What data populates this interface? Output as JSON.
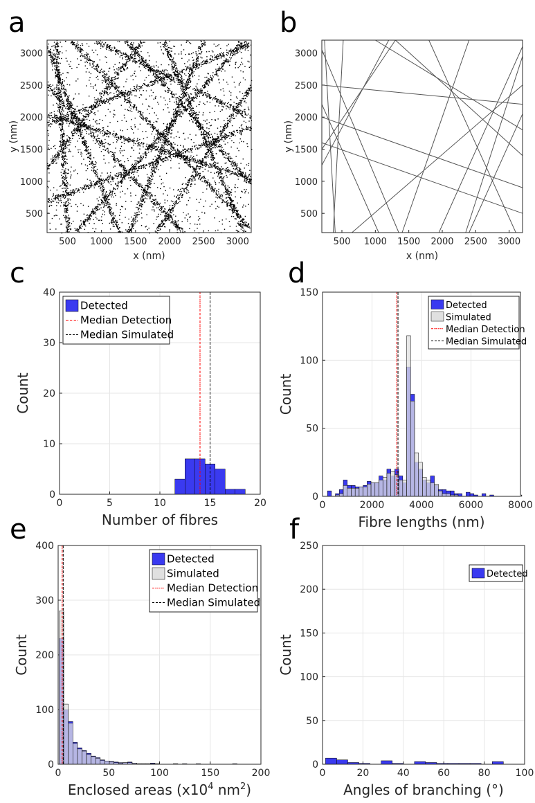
{
  "panels": {
    "a": {
      "letter": "a"
    },
    "b": {
      "letter": "b"
    },
    "c": {
      "letter": "c"
    },
    "d": {
      "letter": "d"
    },
    "e": {
      "letter": "e"
    },
    "f": {
      "letter": "f"
    }
  },
  "colors": {
    "detected": "#3a3af0",
    "simulated": "#e0e0e0",
    "median_detection": "#ff0000",
    "median_simulated": "#000000"
  },
  "chart_data": [
    {
      "id": "a",
      "type": "scatter",
      "xlabel": "x (nm)",
      "ylabel": "y (nm)",
      "xlim": [
        200,
        3200
      ],
      "ylim": [
        200,
        3200
      ],
      "xticks": [
        "500",
        "1000",
        "1500",
        "2000",
        "2500",
        "3000"
      ],
      "yticks": [
        "500",
        "1000",
        "1500",
        "2000",
        "2500",
        "3000"
      ],
      "fibres": [
        [
          [
            200,
            3100
          ],
          [
            1250,
            200
          ]
        ],
        [
          [
            330,
            3200
          ],
          [
            500,
            200
          ]
        ],
        [
          [
            200,
            2500
          ],
          [
            2200,
            200
          ]
        ],
        [
          [
            200,
            1900
          ],
          [
            3200,
            3150
          ]
        ],
        [
          [
            900,
            3200
          ],
          [
            3200,
            2000
          ]
        ],
        [
          [
            200,
            1200
          ],
          [
            1600,
            3200
          ]
        ],
        [
          [
            550,
            3200
          ],
          [
            3200,
            250
          ]
        ],
        [
          [
            1350,
            3200
          ],
          [
            3200,
            950
          ]
        ],
        [
          [
            200,
            2050
          ],
          [
            3200,
            1050
          ]
        ],
        [
          [
            600,
            200
          ],
          [
            3100,
            3200
          ]
        ],
        [
          [
            1800,
            200
          ],
          [
            3200,
            2500
          ]
        ],
        [
          [
            1900,
            3200
          ],
          [
            3100,
            200
          ]
        ],
        [
          [
            200,
            700
          ],
          [
            3200,
            1850
          ]
        ],
        [
          [
            1400,
            200
          ],
          [
            2500,
            3200
          ]
        ]
      ]
    },
    {
      "id": "b",
      "type": "line",
      "xlabel": "x (nm)",
      "ylabel": "y (nm)",
      "xlim": [
        200,
        3200
      ],
      "ylim": [
        200,
        3200
      ],
      "xticks": [
        "500",
        "1000",
        "1500",
        "2000",
        "2500",
        "3000"
      ],
      "yticks": [
        "500",
        "1000",
        "1500",
        "2000",
        "2500",
        "3000"
      ],
      "fibres": [
        [
          [
            240,
            3200
          ],
          [
            400,
            200
          ]
        ],
        [
          [
            520,
            3200
          ],
          [
            370,
            200
          ]
        ],
        [
          [
            200,
            3050
          ],
          [
            1350,
            200
          ]
        ],
        [
          [
            200,
            2200
          ],
          [
            1050,
            200
          ]
        ],
        [
          [
            200,
            1500
          ],
          [
            1300,
            3200
          ]
        ],
        [
          [
            200,
            1250
          ],
          [
            1200,
            3200
          ]
        ],
        [
          [
            200,
            2500
          ],
          [
            3200,
            2200
          ]
        ],
        [
          [
            200,
            2000
          ],
          [
            3200,
            900
          ]
        ],
        [
          [
            1000,
            3200
          ],
          [
            3200,
            1800
          ]
        ],
        [
          [
            1300,
            3200
          ],
          [
            3200,
            1400
          ]
        ],
        [
          [
            650,
            200
          ],
          [
            3200,
            2500
          ]
        ],
        [
          [
            1950,
            200
          ],
          [
            3200,
            3100
          ]
        ],
        [
          [
            2400,
            200
          ],
          [
            3200,
            2050
          ]
        ],
        [
          [
            1800,
            3200
          ],
          [
            3100,
            200
          ]
        ],
        [
          [
            3200,
            2950
          ],
          [
            2350,
            200
          ]
        ],
        [
          [
            200,
            1600
          ],
          [
            3200,
            500
          ]
        ],
        [
          [
            1400,
            200
          ],
          [
            2400,
            3200
          ]
        ]
      ]
    },
    {
      "id": "c",
      "type": "bar",
      "xlabel": "Number of fibres",
      "ylabel": "Count",
      "xlim": [
        0,
        20
      ],
      "ylim": [
        0,
        40
      ],
      "xticks": [
        "0",
        "5",
        "10",
        "15",
        "20"
      ],
      "yticks": [
        "0",
        "10",
        "20",
        "30",
        "40"
      ],
      "legend": {
        "position": "top-left",
        "entries": [
          "Detected",
          "Median Detection",
          "Median Simulated"
        ]
      },
      "series": [
        {
          "name": "Detected",
          "bin_width": 1,
          "bin_starts": [
            11.5,
            12.5,
            13.5,
            14.5,
            15.5,
            16.5,
            17.5
          ],
          "values": [
            3,
            7,
            7,
            6,
            5,
            1,
            1
          ]
        }
      ],
      "median_detection": 14,
      "median_simulated": 15
    },
    {
      "id": "d",
      "type": "bar",
      "xlabel": "Fibre lengths (nm)",
      "ylabel": "Count",
      "xlim": [
        0,
        8000
      ],
      "ylim": [
        0,
        150
      ],
      "xticks": [
        "0",
        "2000",
        "4000",
        "6000",
        "8000"
      ],
      "yticks": [
        "0",
        "50",
        "100",
        "150"
      ],
      "legend": {
        "position": "top-right",
        "entries": [
          "Detected",
          "Simulated",
          "Median Detection",
          "Median Simulated"
        ]
      },
      "bin_width": 160,
      "bin_start": 200,
      "series": [
        {
          "name": "Detected",
          "values": [
            4,
            0,
            2,
            5,
            12,
            8,
            8,
            7,
            7,
            8,
            11,
            10,
            10,
            15,
            12,
            20,
            15,
            20,
            15,
            10,
            95,
            75,
            25,
            20,
            12,
            10,
            15,
            8,
            5,
            5,
            4,
            4,
            2,
            2,
            0,
            3,
            2,
            1,
            0,
            2,
            0,
            1,
            0,
            0,
            0,
            0,
            0,
            0,
            0,
            1
          ]
        },
        {
          "name": "Simulated",
          "values": [
            0,
            0,
            1,
            2,
            8,
            6,
            6,
            6,
            7,
            7,
            9,
            10,
            10,
            12,
            14,
            17,
            18,
            16,
            12,
            12,
            118,
            70,
            32,
            25,
            14,
            12,
            10,
            9,
            4,
            2,
            2,
            1,
            1,
            0,
            0,
            0,
            0,
            0,
            0,
            0,
            0,
            0,
            0,
            0,
            0,
            0,
            0,
            0,
            0,
            0
          ]
        }
      ],
      "median_detection": 3000,
      "median_simulated": 3050
    },
    {
      "id": "e",
      "type": "bar",
      "xlabel": "Enclosed areas (x10",
      "xlabel_sup": "4",
      "xlabel_mid": " nm",
      "xlabel_sup2": "2",
      "xlabel_end": ")",
      "ylabel": "Count",
      "xlim": [
        0,
        200
      ],
      "ylim": [
        0,
        400
      ],
      "xticks": [
        "0",
        "50",
        "100",
        "150",
        "200"
      ],
      "yticks": [
        "0",
        "100",
        "200",
        "300",
        "400"
      ],
      "legend": {
        "position": "top-right",
        "entries": [
          "Detected",
          "Simulated",
          "Median Detection",
          "Median Simulated"
        ]
      },
      "bin_width": 4.5,
      "bin_start": 1,
      "series": [
        {
          "name": "Detected",
          "values": [
            230,
            100,
            78,
            40,
            30,
            25,
            20,
            15,
            12,
            8,
            6,
            5,
            4,
            3,
            3,
            4,
            2,
            1,
            1,
            1,
            2,
            1,
            0,
            0,
            0,
            1,
            0,
            1,
            0,
            0,
            1,
            0,
            0,
            0,
            0,
            0,
            0,
            0,
            1,
            0
          ]
        },
        {
          "name": "Simulated",
          "values": [
            280,
            110,
            75,
            38,
            28,
            24,
            18,
            14,
            11,
            7,
            6,
            4,
            3,
            2,
            3,
            3,
            2,
            1,
            1,
            1,
            1,
            1,
            0,
            0,
            0,
            1,
            0,
            0,
            0,
            0,
            0,
            0,
            0,
            0,
            0,
            0,
            0,
            0,
            0,
            0
          ]
        }
      ],
      "median_detection": 4,
      "median_simulated": 5
    },
    {
      "id": "f",
      "type": "bar",
      "xlabel": "Angles of branching (°)",
      "ylabel": "Count",
      "xlim": [
        0,
        100
      ],
      "ylim": [
        0,
        250
      ],
      "xticks": [
        "0",
        "20",
        "40",
        "60",
        "80",
        "100"
      ],
      "yticks": [
        "0",
        "50",
        "100",
        "150",
        "200",
        "250"
      ],
      "legend": {
        "position": "top-right",
        "entries": [
          "Detected"
        ]
      },
      "bin_width": 5.5,
      "bin_start": 1.5,
      "series": [
        {
          "name": "Detected",
          "values": [
            7,
            5,
            2,
            1,
            0,
            4,
            1,
            0,
            3,
            2,
            1,
            1,
            1,
            1,
            0,
            3,
            0
          ]
        }
      ]
    }
  ]
}
